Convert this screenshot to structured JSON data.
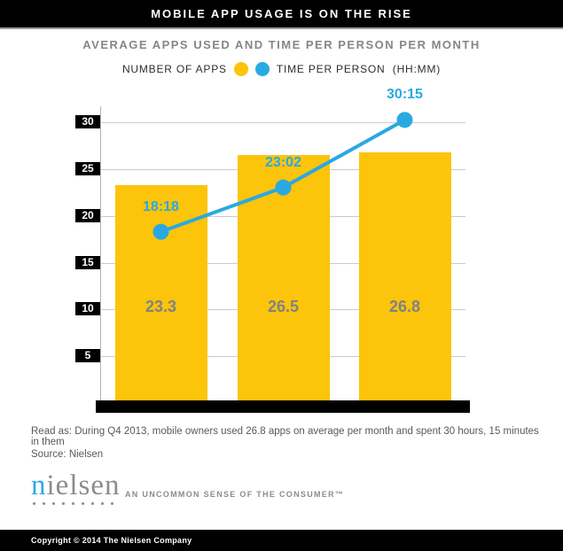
{
  "header": {
    "title": "MOBILE APP USAGE IS ON THE RISE"
  },
  "subtitle": "AVERAGE APPS USED AND TIME PER PERSON PER MONTH",
  "legend": {
    "apps_label": "NUMBER OF APPS",
    "time_label": "TIME PER PERSON  (HH:MM)"
  },
  "colors": {
    "yellow": "#FCC40A",
    "blue": "#29A9E2",
    "grid": "#C9CACB",
    "axis": "#B3B4B6",
    "bar_label_gray": "#808285",
    "subtitle_gray": "#848689",
    "note_gray": "#58595B",
    "logo_gray": "#8A8C8E"
  },
  "chart_data": {
    "type": "bar",
    "title": "AVERAGE APPS USED AND TIME PER PERSON PER MONTH",
    "categories": [
      "",
      "",
      ""
    ],
    "yticks": [
      30,
      25,
      20,
      15,
      10,
      5
    ],
    "ylim": [
      0,
      32
    ],
    "grid": true,
    "legend_position": "top",
    "series": [
      {
        "name": "NUMBER OF APPS",
        "type": "bar",
        "color": "#FCC40A",
        "values": [
          23.3,
          26.5,
          26.8
        ],
        "labels": [
          "23.3",
          "26.5",
          "26.8"
        ]
      },
      {
        "name": "TIME PER PERSON (HH:MM)",
        "type": "line",
        "color": "#29A9E2",
        "values": [
          18.3,
          23.03,
          30.25
        ],
        "labels": [
          "18:18",
          "23:02",
          "30:15"
        ]
      }
    ]
  },
  "notes": {
    "read_as": "Read as: During Q4 2013, mobile owners used 26.8 apps on average per month and spent 30 hours, 15 minutes in them",
    "source": "Source: Nielsen"
  },
  "logo": {
    "first": "n",
    "rest": "ielsen",
    "tagline": "AN UNCOMMON SENSE OF THE CONSUMER™"
  },
  "footer": {
    "copyright": "Copyright © 2014 The Nielsen Company"
  }
}
